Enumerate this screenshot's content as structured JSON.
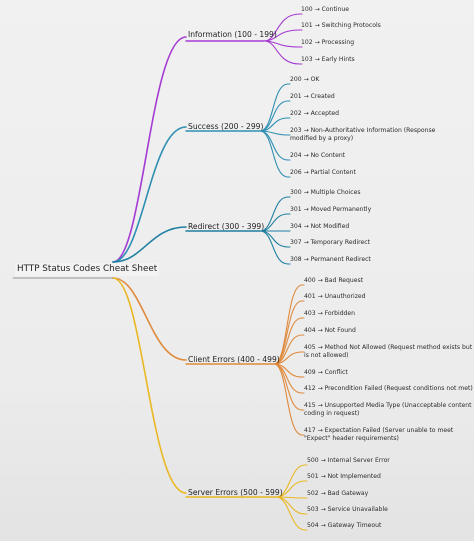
{
  "root": {
    "label": "HTTP Status Codes Cheat Sheet"
  },
  "categories": [
    {
      "label": "Information (100 - 199)",
      "color": "#a53bd3",
      "items": [
        "100 → Continue",
        "101 → Switching Protocols",
        "102 → Processing",
        "103 → Early Hints"
      ]
    },
    {
      "label": "Success (200 - 299)",
      "color": "#2f8fb3",
      "items": [
        "200 → OK",
        "201 → Created",
        "202 → Accepted",
        "203 → Non-Authoritative Information (Response modified by a proxy)",
        "204 → No Content",
        "206 → Partial Content"
      ]
    },
    {
      "label": "Redirect (300 - 399)",
      "color": "#1f7fa0",
      "items": [
        "300 → Multiple Choices",
        "301 → Moved Permanently",
        "304 → Not Modified",
        "307 → Temporary Redirect",
        "308 → Permanent Redirect"
      ]
    },
    {
      "label": "Client Errors (400 - 499)",
      "color": "#e08a3c",
      "items": [
        "400 → Bad Request",
        "401 → Unauthorized",
        "403 → Forbidden",
        "404 → Not Found",
        "405 → Method Not Allowed (Request method exists but is not allowed)",
        "409 → Conflict",
        "412 → Precondition Failed (Request conditions not met)",
        "415 → Unsupported Media Type (Unacceptable content coding in request)",
        "417 → Expectation Failed (Server unable to meet \"Expect\" header requirements)"
      ]
    },
    {
      "label": "Server Errors (500 - 599)",
      "color": "#e9b824",
      "items": [
        "500 → Internal Server Error",
        "501 → Not Implemented",
        "502 → Bad Gateway",
        "503 → Service Unavailable",
        "504 → Gateway Timeout"
      ]
    }
  ]
}
